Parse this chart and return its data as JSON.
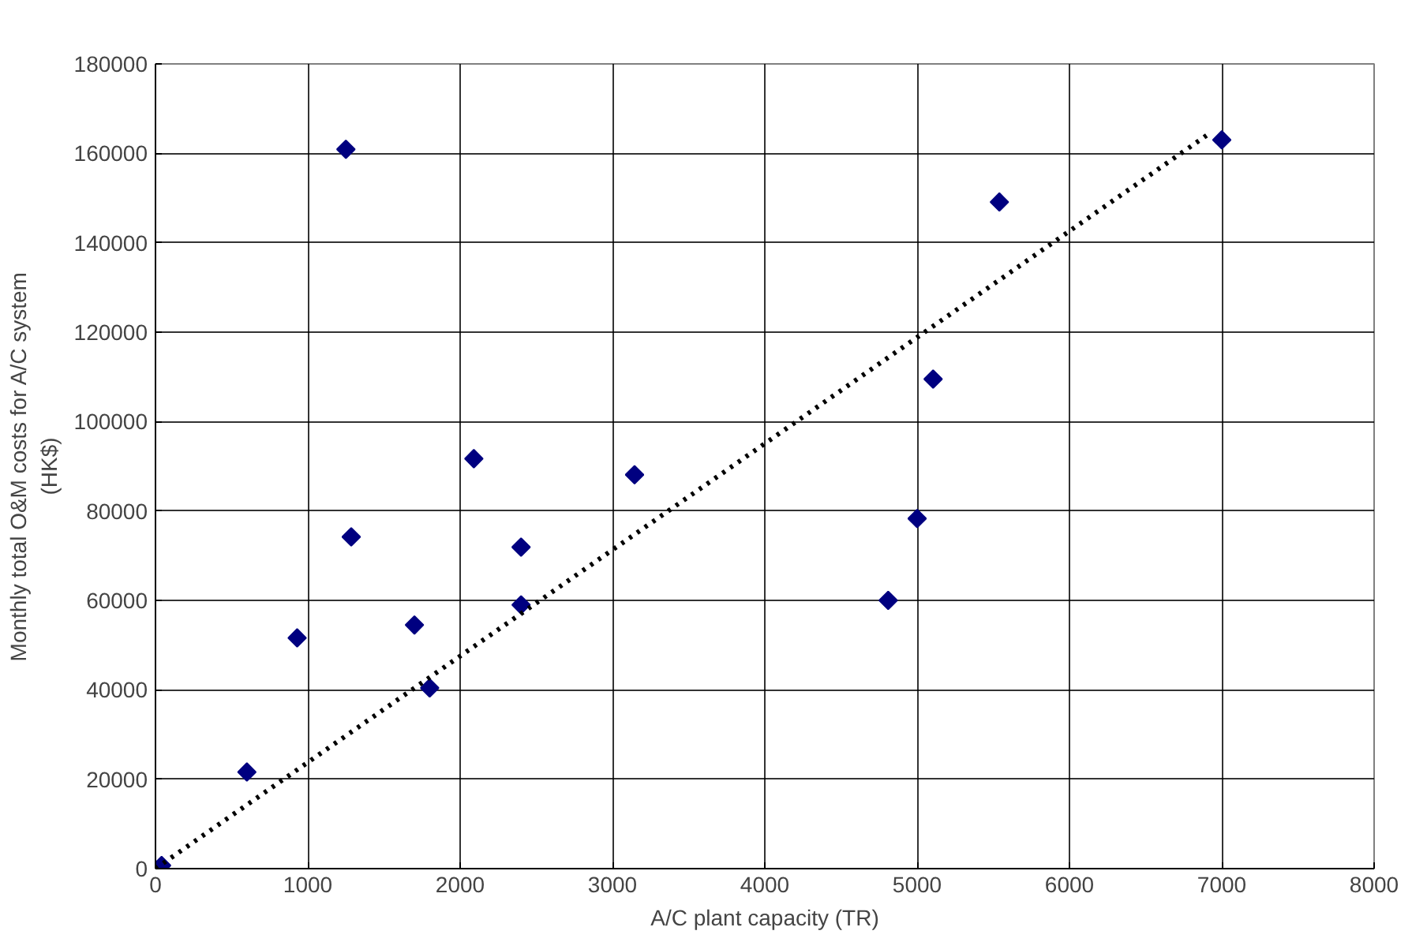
{
  "chart_data": {
    "type": "scatter",
    "xlabel": "A/C plant capacity (TR)",
    "ylabel": "Monthly total O&M costs for A/C system\n(HK$)",
    "xlim": [
      0,
      8000
    ],
    "ylim": [
      0,
      180000
    ],
    "xticks": [
      0,
      1000,
      2000,
      3000,
      4000,
      5000,
      6000,
      7000,
      8000
    ],
    "yticks": [
      0,
      20000,
      40000,
      60000,
      80000,
      100000,
      120000,
      140000,
      160000,
      180000
    ],
    "grid": true,
    "marker": "diamond",
    "series": [
      {
        "color": "#000080",
        "x": [
          40,
          600,
          930,
          1250,
          1285,
          1700,
          1800,
          2090,
          2400,
          2400,
          3145,
          4810,
          5000,
          5105,
          5540,
          7000
        ],
        "values": [
          700,
          21600,
          51600,
          160900,
          74200,
          54500,
          40400,
          91700,
          71900,
          59000,
          88100,
          60000,
          78300,
          109500,
          149100,
          163000
        ]
      },
      {
        "type": "line",
        "color": "#000000",
        "line_style": "dotted",
        "marker": "none",
        "x": [
          0,
          6900
        ],
        "values": [
          0,
          164000
        ]
      }
    ]
  }
}
